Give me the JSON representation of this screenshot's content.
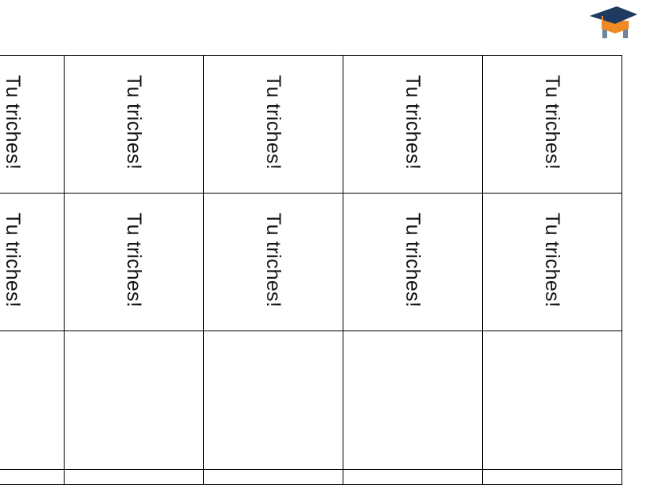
{
  "logo": {
    "icon": "graduation-cap-icon",
    "colors": {
      "cap": "#1f3a60",
      "band": "#f08a24",
      "legs": "#6f8499"
    }
  },
  "cards": {
    "rows": [
      [
        "Tu triches!",
        "Tu triches!",
        "Tu triches!",
        "Tu triches!",
        "Tu triches!"
      ],
      [
        "Tu triches!",
        "Tu triches!",
        "Tu triches!",
        "Tu triches!",
        "Tu triches!"
      ],
      [
        "",
        "",
        "",
        "",
        ""
      ],
      [
        "",
        "",
        "",
        "",
        ""
      ]
    ]
  }
}
